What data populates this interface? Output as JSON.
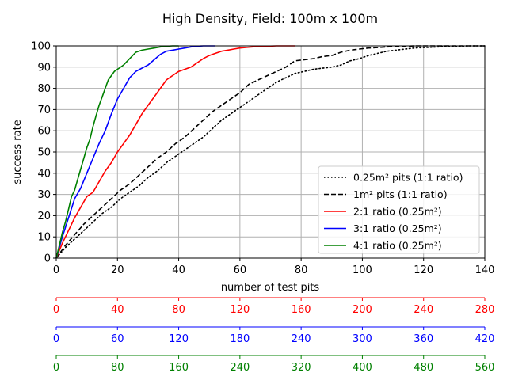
{
  "chart_data": {
    "type": "line",
    "title": "High Density, Field: 100m x 100m",
    "xlabel": "number of test pits",
    "ylabel": "success rate",
    "xlim": [
      0,
      140
    ],
    "ylim": [
      0,
      100
    ],
    "x_ticks": [
      "0",
      "20",
      "40",
      "60",
      "80",
      "100",
      "120",
      "140"
    ],
    "y_ticks": [
      "0",
      "10",
      "20",
      "30",
      "40",
      "50",
      "60",
      "70",
      "80",
      "90",
      "100"
    ],
    "grid": true,
    "legend_position": "lower-right",
    "series": [
      {
        "name": "0.25m² pits (1:1 ratio)",
        "color": "#000000",
        "style": "dotted",
        "x": [
          0,
          3,
          6,
          9,
          12,
          15,
          18,
          21,
          24,
          27,
          30,
          33,
          36,
          39,
          42,
          45,
          48,
          51,
          54,
          57,
          60,
          63,
          66,
          69,
          72,
          75,
          78,
          81,
          84,
          87,
          90,
          93,
          96,
          99,
          102,
          105,
          108,
          111,
          114,
          117,
          120,
          125,
          130,
          135,
          140
        ],
        "values": [
          0,
          5,
          9,
          13,
          17,
          21,
          24,
          28,
          31,
          34,
          38,
          41,
          45,
          48,
          51,
          54,
          57,
          61,
          65,
          68,
          71,
          74,
          77,
          80,
          83,
          85,
          87,
          88,
          89,
          89.5,
          90,
          91,
          93,
          94,
          95.5,
          96.5,
          97.5,
          98,
          98.5,
          99,
          99.2,
          99.5,
          99.8,
          100,
          100
        ]
      },
      {
        "name": "1m² pits (1:1 ratio)",
        "color": "#000000",
        "style": "dashed",
        "x": [
          0,
          3,
          6,
          9,
          12,
          15,
          18,
          21,
          24,
          27,
          30,
          33,
          36,
          39,
          42,
          45,
          48,
          51,
          54,
          57,
          60,
          63,
          66,
          69,
          72,
          75,
          78,
          81,
          84,
          87,
          90,
          93,
          96,
          99,
          102,
          105,
          108,
          111,
          114,
          117,
          120,
          125,
          130,
          135,
          140
        ],
        "values": [
          0,
          6,
          11,
          16,
          20,
          24,
          28,
          32,
          35,
          39,
          43,
          47,
          50,
          54,
          57,
          61,
          65,
          69,
          72,
          75,
          78,
          82,
          84,
          86,
          88,
          90,
          93,
          93.5,
          94,
          95,
          95.5,
          97,
          98,
          98.5,
          99,
          99.2,
          99.5,
          99.7,
          99.8,
          100,
          100,
          100,
          100,
          100,
          100
        ]
      },
      {
        "name": "2:1 ratio (0.25m²)",
        "color": "#ff0000",
        "style": "solid",
        "x": [
          0,
          2,
          4,
          6,
          8,
          10,
          12,
          14,
          16,
          18,
          20,
          22,
          24,
          26,
          28,
          30,
          32,
          34,
          36,
          38,
          40,
          42,
          44,
          46,
          48,
          50,
          52,
          54,
          56,
          58,
          60,
          62,
          64,
          66,
          68,
          70,
          72,
          74,
          76,
          78
        ],
        "values": [
          0,
          7,
          13,
          19,
          24,
          29,
          31,
          36,
          41,
          45,
          50,
          54,
          58,
          63,
          68,
          72,
          76,
          80,
          84,
          86,
          88,
          89,
          90,
          92,
          94,
          95.5,
          96.5,
          97.5,
          98,
          98.5,
          99,
          99.3,
          99.5,
          99.7,
          99.8,
          99.9,
          100,
          100,
          100,
          100
        ]
      },
      {
        "name": "3:1 ratio (0.25m²)",
        "color": "#0000ff",
        "style": "solid",
        "x": [
          0,
          2,
          4,
          6,
          8,
          10,
          12,
          14,
          16,
          18,
          20,
          22,
          24,
          26,
          28,
          30,
          32,
          34,
          36,
          38,
          40,
          42,
          44,
          46,
          48,
          50,
          52
        ],
        "values": [
          0,
          10,
          19,
          28,
          33,
          40,
          47,
          54,
          60,
          68,
          75,
          80,
          85,
          88,
          89.5,
          91,
          93.5,
          96,
          97.5,
          98,
          98.5,
          99,
          99.5,
          99.8,
          100,
          100,
          100
        ]
      },
      {
        "name": "4:1 ratio (0.25m²)",
        "color": "#008000",
        "style": "solid",
        "x": [
          0,
          1,
          2,
          3,
          4,
          5,
          6,
          7,
          8,
          9,
          10,
          11,
          12,
          13,
          14,
          15,
          16,
          17,
          18,
          19,
          20,
          22,
          24,
          26,
          28,
          30,
          32,
          34,
          36,
          38,
          40
        ],
        "values": [
          0,
          6,
          12,
          17,
          23,
          29,
          32,
          37,
          42,
          47,
          52,
          56,
          62,
          67,
          72,
          76,
          80,
          84,
          86,
          88,
          89,
          91,
          94,
          97,
          98,
          98.5,
          99,
          99.5,
          99.8,
          100,
          100
        ]
      }
    ],
    "extra_axes": [
      {
        "name": "red-axis",
        "color": "#ff0000",
        "ticks": [
          "0",
          "40",
          "80",
          "120",
          "160",
          "200",
          "240",
          "280"
        ]
      },
      {
        "name": "blue-axis",
        "color": "#0000ff",
        "ticks": [
          "0",
          "60",
          "120",
          "180",
          "240",
          "300",
          "360",
          "420"
        ]
      },
      {
        "name": "green-axis",
        "color": "#008000",
        "ticks": [
          "0",
          "80",
          "160",
          "240",
          "320",
          "400",
          "480",
          "560"
        ]
      }
    ]
  }
}
